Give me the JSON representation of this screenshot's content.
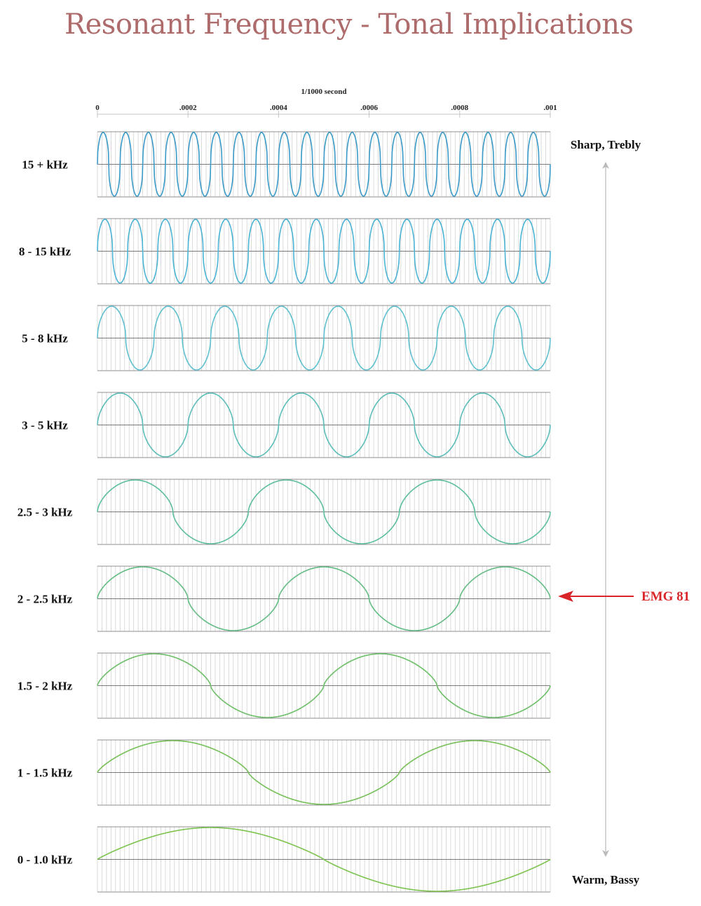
{
  "title": "Resonant Frequency - Tonal Implications",
  "chart_data": {
    "type": "line",
    "xlabel": "1/1000 second",
    "xlim": [
      0,
      0.001
    ],
    "ylim": [
      -1,
      1
    ],
    "x_ticks": [
      "0",
      ".0002",
      ".0004",
      ".0006",
      ".0008",
      ".001"
    ],
    "grid": true,
    "series": [
      {
        "name": "15 + kHz",
        "cycles": 20,
        "shape_exponent": 0.42,
        "color": "#3a9ac8"
      },
      {
        "name": "8 - 15 kHz",
        "cycles": 15,
        "shape_exponent": 0.45,
        "color": "#4bb3d6"
      },
      {
        "name": "5 - 8 kHz",
        "cycles": 8,
        "shape_exponent": 0.5,
        "color": "#5ec0cf"
      },
      {
        "name": "3 - 5 kHz",
        "cycles": 5,
        "shape_exponent": 0.55,
        "color": "#5bbdb9"
      },
      {
        "name": "2.5 - 3 kHz",
        "cycles": 3,
        "shape_exponent": 0.58,
        "color": "#5cbea0"
      },
      {
        "name": "2 - 2.5 kHz",
        "cycles": 2.5,
        "shape_exponent": 0.62,
        "color": "#63bc83"
      },
      {
        "name": "1.5 - 2 kHz",
        "cycles": 2,
        "shape_exponent": 0.68,
        "color": "#6cbe67"
      },
      {
        "name": "1 - 1.5 kHz",
        "cycles": 1.5,
        "shape_exponent": 0.75,
        "color": "#75bf57"
      },
      {
        "name": "0 - 1.0 kHz",
        "cycles": 1,
        "shape_exponent": 0.9,
        "color": "#7cc34e"
      }
    ],
    "annotations": {
      "top": "Sharp, Trebly",
      "bottom": "Warm, Bassy",
      "marker": {
        "label": "EMG 81",
        "series": "2 - 2.5 kHz",
        "color": "#d9252a"
      }
    }
  }
}
